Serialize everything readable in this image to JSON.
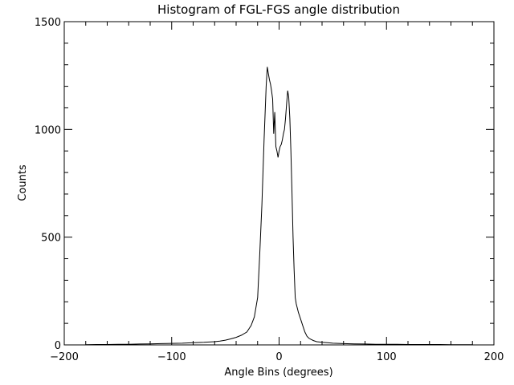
{
  "chart_data": {
    "type": "line",
    "title": "Histogram of FGL-FGS angle distribution",
    "xlabel": "Angle Bins (degrees)",
    "ylabel": "Counts",
    "xlim": [
      -200,
      200
    ],
    "ylim": [
      0,
      1500
    ],
    "x_ticks": [
      -200,
      -100,
      0,
      100,
      200
    ],
    "y_ticks": [
      0,
      500,
      1000,
      1500
    ],
    "x_minor_step": 20,
    "y_minor_step": 100,
    "grid": false,
    "line_color": "#000000",
    "series": [
      {
        "x": [
          -180,
          -170,
          -160,
          -150,
          -140,
          -130,
          -120,
          -110,
          -100,
          -90,
          -80,
          -70,
          -60,
          -55,
          -50,
          -45,
          -40,
          -35,
          -30,
          -26,
          -23,
          -20,
          -18,
          -16,
          -14,
          -12,
          -11,
          -10,
          -9,
          -8,
          -7,
          -6,
          -5,
          -4,
          -3,
          -2,
          -1,
          0,
          1,
          2,
          3,
          4,
          5,
          6,
          7,
          8,
          9,
          10,
          11,
          12,
          13,
          14,
          15,
          16,
          18,
          20,
          22,
          24,
          26,
          28,
          30,
          32,
          35,
          40,
          45,
          50,
          60,
          70,
          80,
          90,
          100,
          110,
          120,
          130,
          140,
          150,
          160,
          170,
          180
        ],
        "y": [
          1,
          2,
          2,
          3,
          3,
          4,
          5,
          6,
          7,
          8,
          10,
          12,
          15,
          18,
          22,
          28,
          35,
          45,
          60,
          90,
          130,
          220,
          420,
          650,
          950,
          1200,
          1290,
          1260,
          1230,
          1210,
          1180,
          1140,
          980,
          1080,
          920,
          900,
          870,
          900,
          920,
          930,
          950,
          980,
          1000,
          1050,
          1120,
          1180,
          1150,
          1050,
          900,
          700,
          500,
          350,
          220,
          190,
          150,
          120,
          90,
          60,
          40,
          30,
          25,
          20,
          15,
          12,
          10,
          8,
          6,
          5,
          4,
          3,
          3,
          3,
          2,
          2,
          2,
          2,
          1,
          1,
          1
        ]
      }
    ]
  }
}
